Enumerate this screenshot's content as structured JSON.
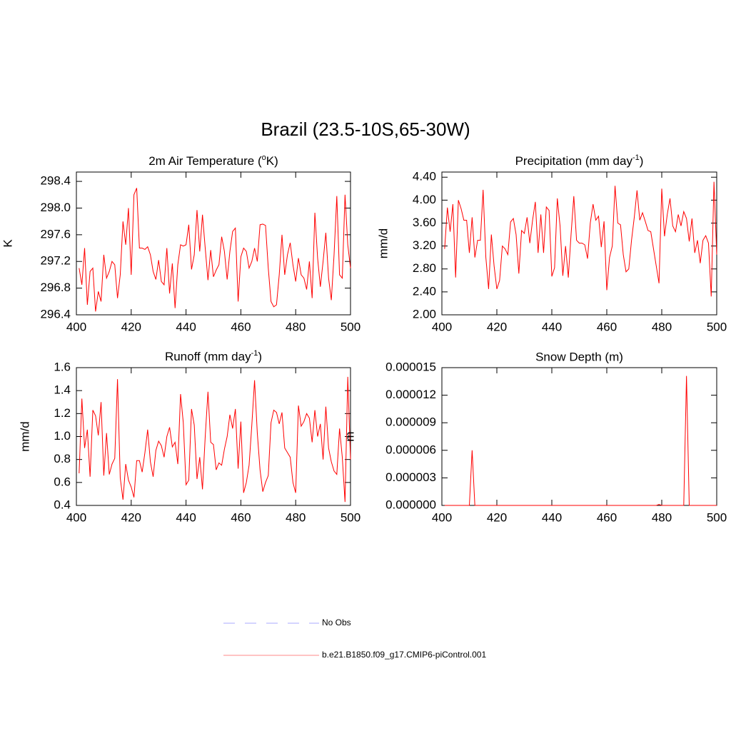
{
  "title": "Brazil (23.5-10S,65-30W)",
  "chart_data": [
    {
      "type": "line",
      "title": [
        "2m Air Temperature (",
        "o",
        "K)"
      ],
      "ylabel": "K",
      "xlim": [
        400,
        500
      ],
      "xticks": [
        400,
        420,
        440,
        460,
        480,
        500
      ],
      "ylim": [
        296.4,
        298.54
      ],
      "yticks": [
        296.4,
        296.8,
        297.2,
        297.6,
        {
          "value": 298,
          "label": "298.0"
        },
        298.4
      ],
      "x": [
        401,
        402,
        403,
        404,
        405,
        406,
        407,
        408,
        409,
        410,
        411,
        412,
        413,
        414,
        415,
        416,
        417,
        418,
        419,
        420,
        421,
        422,
        423,
        424,
        425,
        426,
        427,
        428,
        429,
        430,
        431,
        432,
        433,
        434,
        435,
        436,
        437,
        438,
        439,
        440,
        441,
        442,
        443,
        444,
        445,
        446,
        447,
        448,
        449,
        450,
        451,
        452,
        453,
        454,
        455,
        456,
        457,
        458,
        459,
        460,
        461,
        462,
        463,
        464,
        465,
        466,
        467,
        468,
        469,
        470,
        471,
        472,
        473,
        474,
        475,
        476,
        477,
        478,
        479,
        480,
        481,
        482,
        483,
        484,
        485,
        486,
        487,
        488,
        489,
        490,
        491,
        492,
        493,
        494,
        495,
        496,
        497,
        498,
        499,
        500
      ],
      "series": [
        {
          "color": "#ff0000",
          "values": [
            297.1,
            296.85,
            297.4,
            296.55,
            297.05,
            297.1,
            296.45,
            296.75,
            296.6,
            297.3,
            296.95,
            297.05,
            297.2,
            297.15,
            296.65,
            297.0,
            297.8,
            297.45,
            298.0,
            297.0,
            298.2,
            298.3,
            297.4,
            297.4,
            297.38,
            297.42,
            297.3,
            297.05,
            296.93,
            297.22,
            296.9,
            296.85,
            297.4,
            296.72,
            297.17,
            296.5,
            297.15,
            297.45,
            297.43,
            297.45,
            297.75,
            297.08,
            297.3,
            297.97,
            297.35,
            297.9,
            297.4,
            296.92,
            297.37,
            296.97,
            297.07,
            297.15,
            297.57,
            297.35,
            296.93,
            297.35,
            297.65,
            297.7,
            296.6,
            297.27,
            297.4,
            297.35,
            297.1,
            297.2,
            297.4,
            297.2,
            297.75,
            297.76,
            297.74,
            297.1,
            296.6,
            296.52,
            296.55,
            297.0,
            297.6,
            297.0,
            297.3,
            297.48,
            297.15,
            296.9,
            297.25,
            297.0,
            296.95,
            296.78,
            297.2,
            296.65,
            297.93,
            297.25,
            296.82,
            297.2,
            297.63,
            296.95,
            296.62,
            297.3,
            298.18,
            297.0,
            296.95,
            298.2,
            297.45,
            297.1
          ]
        }
      ]
    },
    {
      "type": "line",
      "title": [
        "Precipitation (mm day",
        "-1",
        ")"
      ],
      "ylabel": "mm/d",
      "xlim": [
        400,
        500
      ],
      "xticks": [
        400,
        420,
        440,
        460,
        480,
        500
      ],
      "ylim": [
        2.0,
        4.49
      ],
      "yticks": [
        {
          "value": 2,
          "label": "2.00"
        },
        {
          "value": 2.4,
          "label": "2.40"
        },
        {
          "value": 2.8,
          "label": "2.80"
        },
        {
          "value": 3.2,
          "label": "3.20"
        },
        {
          "value": 3.6,
          "label": "3.60"
        },
        {
          "value": 4,
          "label": "4.00"
        },
        {
          "value": 4.4,
          "label": "4.40"
        }
      ],
      "x": [
        401,
        402,
        403,
        404,
        405,
        406,
        407,
        408,
        409,
        410,
        411,
        412,
        413,
        414,
        415,
        416,
        417,
        418,
        419,
        420,
        421,
        422,
        423,
        424,
        425,
        426,
        427,
        428,
        429,
        430,
        431,
        432,
        433,
        434,
        435,
        436,
        437,
        438,
        439,
        440,
        441,
        442,
        443,
        444,
        445,
        446,
        447,
        448,
        449,
        450,
        451,
        452,
        453,
        454,
        455,
        456,
        457,
        458,
        459,
        460,
        461,
        462,
        463,
        464,
        465,
        466,
        467,
        468,
        469,
        470,
        471,
        472,
        473,
        474,
        475,
        476,
        477,
        478,
        479,
        480,
        481,
        482,
        483,
        484,
        485,
        486,
        487,
        488,
        489,
        490,
        491,
        492,
        493,
        494,
        495,
        496,
        497,
        498,
        499,
        500
      ],
      "series": [
        {
          "color": "#ff0000",
          "values": [
            3.15,
            3.87,
            3.45,
            3.93,
            2.65,
            4.0,
            3.85,
            3.65,
            3.65,
            3.08,
            3.7,
            3.0,
            3.3,
            3.3,
            4.18,
            3.0,
            2.45,
            3.4,
            2.85,
            2.45,
            2.6,
            3.2,
            3.15,
            3.05,
            3.62,
            3.68,
            3.4,
            2.72,
            3.47,
            3.42,
            3.7,
            3.25,
            3.65,
            3.97,
            3.08,
            3.75,
            3.08,
            3.88,
            3.82,
            2.67,
            2.82,
            4.03,
            3.55,
            2.68,
            3.2,
            2.65,
            3.4,
            4.07,
            3.3,
            3.25,
            3.25,
            3.22,
            2.98,
            3.6,
            3.93,
            3.65,
            3.72,
            3.18,
            3.63,
            2.43,
            3.0,
            3.2,
            4.25,
            3.6,
            3.57,
            3.05,
            2.75,
            2.8,
            3.3,
            3.7,
            4.17,
            3.65,
            3.78,
            3.63,
            3.47,
            3.45,
            3.15,
            2.85,
            2.55,
            4.2,
            3.37,
            3.75,
            4.03,
            3.55,
            3.45,
            3.75,
            3.55,
            3.8,
            3.68,
            3.28,
            3.68,
            3.08,
            3.3,
            2.9,
            3.3,
            3.38,
            3.25,
            2.32,
            4.32,
            3.05
          ]
        }
      ]
    },
    {
      "type": "line",
      "title": [
        "Runoff (mm day",
        "-1",
        ")"
      ],
      "ylabel": "mm/d",
      "xlim": [
        400,
        500
      ],
      "xticks": [
        400,
        420,
        440,
        460,
        480,
        500
      ],
      "ylim": [
        0.4,
        1.6
      ],
      "yticks": [
        0.4,
        0.6,
        0.8,
        {
          "value": 1,
          "label": "1.0"
        },
        1.2,
        1.4,
        1.6
      ],
      "x": [
        401,
        402,
        403,
        404,
        405,
        406,
        407,
        408,
        409,
        410,
        411,
        412,
        413,
        414,
        415,
        416,
        417,
        418,
        419,
        420,
        421,
        422,
        423,
        424,
        425,
        426,
        427,
        428,
        429,
        430,
        431,
        432,
        433,
        434,
        435,
        436,
        437,
        438,
        439,
        440,
        441,
        442,
        443,
        444,
        445,
        446,
        447,
        448,
        449,
        450,
        451,
        452,
        453,
        454,
        455,
        456,
        457,
        458,
        459,
        460,
        461,
        462,
        463,
        464,
        465,
        466,
        467,
        468,
        469,
        470,
        471,
        472,
        473,
        474,
        475,
        476,
        477,
        478,
        479,
        480,
        481,
        482,
        483,
        484,
        485,
        486,
        487,
        488,
        489,
        490,
        491,
        492,
        493,
        494,
        495,
        496,
        497,
        498,
        499,
        500
      ],
      "series": [
        {
          "color": "#ff0000",
          "values": [
            0.68,
            1.33,
            0.9,
            1.06,
            0.65,
            1.23,
            1.18,
            1.01,
            1.3,
            0.66,
            1.03,
            0.67,
            0.76,
            0.81,
            1.5,
            0.64,
            0.45,
            0.76,
            0.62,
            0.56,
            0.47,
            0.79,
            0.79,
            0.69,
            0.86,
            1.06,
            0.78,
            0.65,
            0.88,
            0.96,
            0.92,
            0.82,
            1.0,
            1.08,
            0.91,
            0.95,
            0.76,
            1.37,
            1.12,
            0.58,
            0.62,
            1.24,
            1.1,
            0.63,
            0.82,
            0.54,
            1.0,
            1.39,
            0.95,
            0.93,
            0.71,
            0.77,
            0.75,
            0.89,
            1.0,
            1.19,
            1.07,
            1.24,
            0.72,
            1.13,
            0.51,
            0.6,
            0.75,
            1.1,
            1.49,
            1.03,
            0.71,
            0.52,
            0.6,
            0.66,
            1.12,
            1.23,
            1.21,
            1.11,
            1.21,
            0.9,
            0.86,
            0.82,
            0.6,
            0.51,
            1.27,
            1.09,
            1.13,
            1.2,
            1.16,
            0.95,
            1.23,
            1.0,
            1.11,
            0.8,
            1.26,
            0.9,
            0.78,
            0.7,
            0.67,
            1.07,
            0.82,
            0.43,
            1.52,
            0.8
          ]
        }
      ]
    },
    {
      "type": "line",
      "title": "Snow Depth (m)",
      "ylabel": "m",
      "xlim": [
        400,
        500
      ],
      "xticks": [
        400,
        420,
        440,
        460,
        480,
        500
      ],
      "ylim": [
        0,
        1.5e-05
      ],
      "yticks": [
        {
          "value": 0,
          "label": "0.000000"
        },
        {
          "value": 3e-06,
          "label": "0.000003"
        },
        {
          "value": 6e-06,
          "label": "0.000006"
        },
        {
          "value": 9e-06,
          "label": "0.000009"
        },
        {
          "value": 1.2e-05,
          "label": "0.000012"
        },
        {
          "value": 1.5e-05,
          "label": "0.000015"
        }
      ],
      "x": [
        401,
        402,
        403,
        404,
        405,
        406,
        407,
        408,
        409,
        410,
        411,
        412,
        413,
        414,
        415,
        416,
        417,
        418,
        419,
        420,
        421,
        422,
        423,
        424,
        425,
        426,
        427,
        428,
        429,
        430,
        431,
        432,
        433,
        434,
        435,
        436,
        437,
        438,
        439,
        440,
        441,
        442,
        443,
        444,
        445,
        446,
        447,
        448,
        449,
        450,
        451,
        452,
        453,
        454,
        455,
        456,
        457,
        458,
        459,
        460,
        461,
        462,
        463,
        464,
        465,
        466,
        467,
        468,
        469,
        470,
        471,
        472,
        473,
        474,
        475,
        476,
        477,
        478,
        479,
        480,
        481,
        482,
        483,
        484,
        485,
        486,
        487,
        488,
        489,
        490,
        491,
        492,
        493,
        494,
        495,
        496,
        497,
        498,
        499,
        500
      ],
      "series": [
        {
          "color": "#ff0000",
          "values": [
            0,
            0,
            0,
            0,
            0,
            0,
            0,
            0,
            0,
            0,
            6e-06,
            0,
            0,
            0,
            0,
            0,
            0,
            0,
            0,
            0,
            0,
            0,
            0,
            0,
            0,
            0,
            0,
            0,
            0,
            0,
            0,
            0,
            0,
            0,
            0,
            0,
            0,
            0,
            0,
            0,
            0,
            0,
            0,
            0,
            0,
            0,
            0,
            0,
            0,
            0,
            0,
            0,
            0,
            0,
            0,
            0,
            0,
            0,
            0,
            0,
            0,
            0,
            0,
            0,
            0,
            0,
            0,
            0,
            0,
            0,
            0,
            0,
            0,
            0,
            0,
            0,
            0,
            0,
            1e-07,
            0,
            0,
            0,
            0,
            0,
            0,
            0,
            0,
            0,
            1.41e-05,
            0,
            0,
            0,
            0,
            0,
            0,
            0,
            0,
            0,
            0,
            0
          ]
        }
      ]
    }
  ],
  "legend": [
    {
      "name": "No Obs",
      "color": "#aaaaff",
      "dash": true
    },
    {
      "name": "b.e21.B1850.f09_g17.CMIP6-piControl.001",
      "color": "#ff8888",
      "dash": false
    }
  ]
}
